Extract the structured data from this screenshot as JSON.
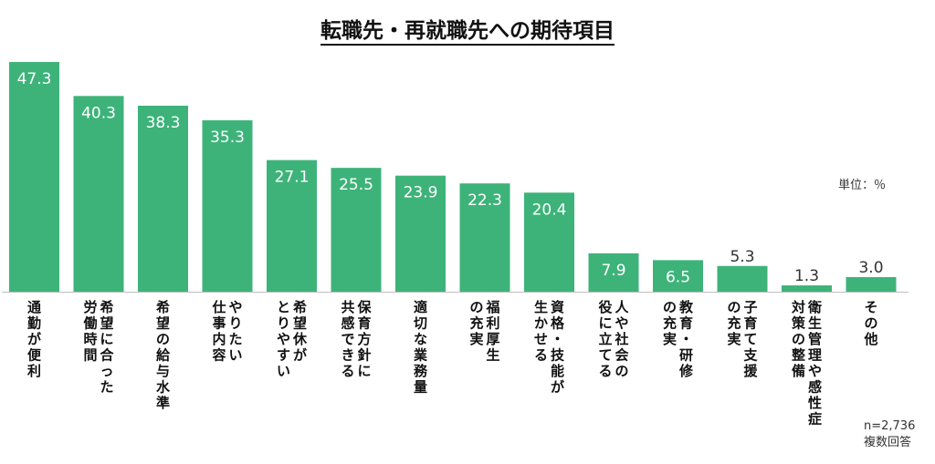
{
  "chart_data": {
    "type": "bar",
    "title": "転職先・再就職先への期待項目",
    "unit_label": "単位：％",
    "notes": {
      "sample": "n=2,736",
      "answer_type": "複数回答"
    },
    "categories": [
      [
        "通勤が便利"
      ],
      [
        "希望に合った",
        "労働時間"
      ],
      [
        "希望の給与水準"
      ],
      [
        "やりたい",
        "仕事内容"
      ],
      [
        "希望休が",
        "とりやすい"
      ],
      [
        "保育方針に",
        "共感できる"
      ],
      [
        "適切な業務量"
      ],
      [
        "福利厚生",
        "の充実"
      ],
      [
        "資格・技能が",
        "生かせる"
      ],
      [
        "人や社会の",
        "役に立てる"
      ],
      [
        "教育・研修",
        "の充実"
      ],
      [
        "子育て支援",
        "の充実"
      ],
      [
        "衛生管理や感性症",
        "対策の整備"
      ],
      [
        "その他"
      ]
    ],
    "values": [
      47.3,
      40.3,
      38.3,
      35.3,
      27.1,
      25.5,
      23.9,
      22.3,
      20.4,
      7.9,
      6.5,
      5.3,
      1.3,
      3.0
    ],
    "ylim": [
      0,
      50
    ],
    "grid": false,
    "legend": "none",
    "colors": {
      "bar": "#3db37a",
      "label_inside": "#ffffff",
      "label_outside": "#333333",
      "axis": "#bfbfbf",
      "text": "#111111"
    }
  }
}
